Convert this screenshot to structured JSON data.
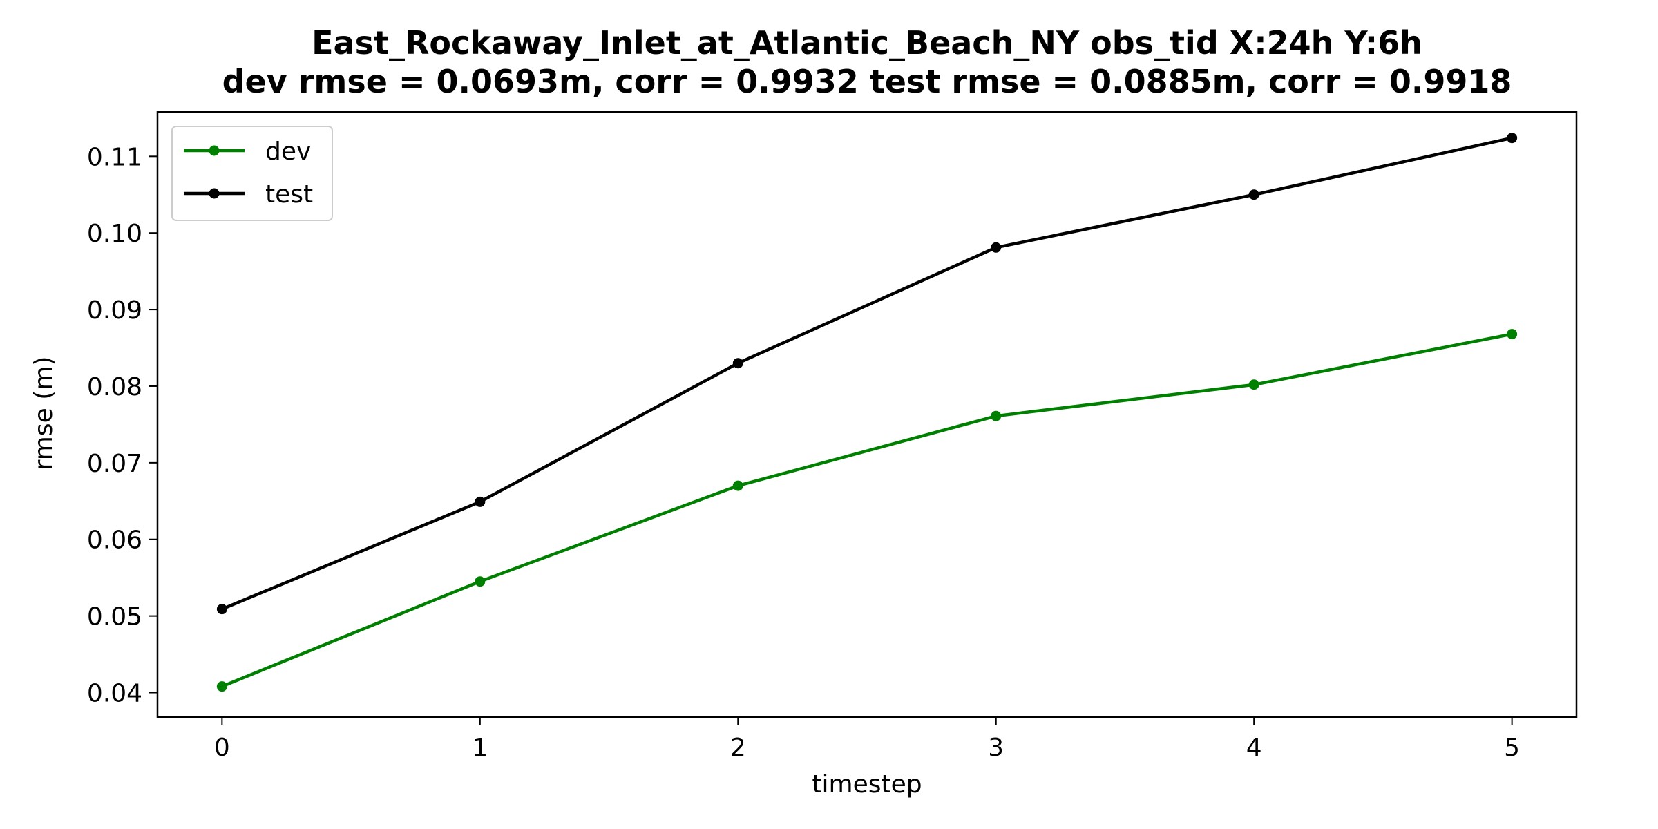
{
  "chart_data": {
    "type": "line",
    "title_line1": "East_Rockaway_Inlet_at_Atlantic_Beach_NY   obs_tid   X:24h   Y:6h",
    "title_line2": "dev rmse = 0.0693m, corr = 0.9932   test rmse = 0.0885m, corr = 0.9918",
    "xlabel": "timestep",
    "ylabel": "rmse (m)",
    "x": [
      0,
      1,
      2,
      3,
      4,
      5
    ],
    "xlim": [
      -0.25,
      5.25
    ],
    "ylim": [
      0.0368,
      0.1158
    ],
    "xticks": [
      0,
      1,
      2,
      3,
      4,
      5
    ],
    "xtick_labels": [
      "0",
      "1",
      "2",
      "3",
      "4",
      "5"
    ],
    "yticks": [
      0.04,
      0.05,
      0.06,
      0.07,
      0.08,
      0.09,
      0.1,
      0.11
    ],
    "ytick_labels": [
      "0.04",
      "0.05",
      "0.06",
      "0.07",
      "0.08",
      "0.09",
      "0.10",
      "0.11"
    ],
    "grid": false,
    "legend_position": "top-left",
    "series": [
      {
        "name": "dev",
        "color": "#008000",
        "values": [
          0.0408,
          0.0545,
          0.067,
          0.0761,
          0.0802,
          0.0868
        ]
      },
      {
        "name": "test",
        "color": "#000000",
        "values": [
          0.0509,
          0.0649,
          0.083,
          0.0981,
          0.105,
          0.1124
        ]
      }
    ]
  }
}
